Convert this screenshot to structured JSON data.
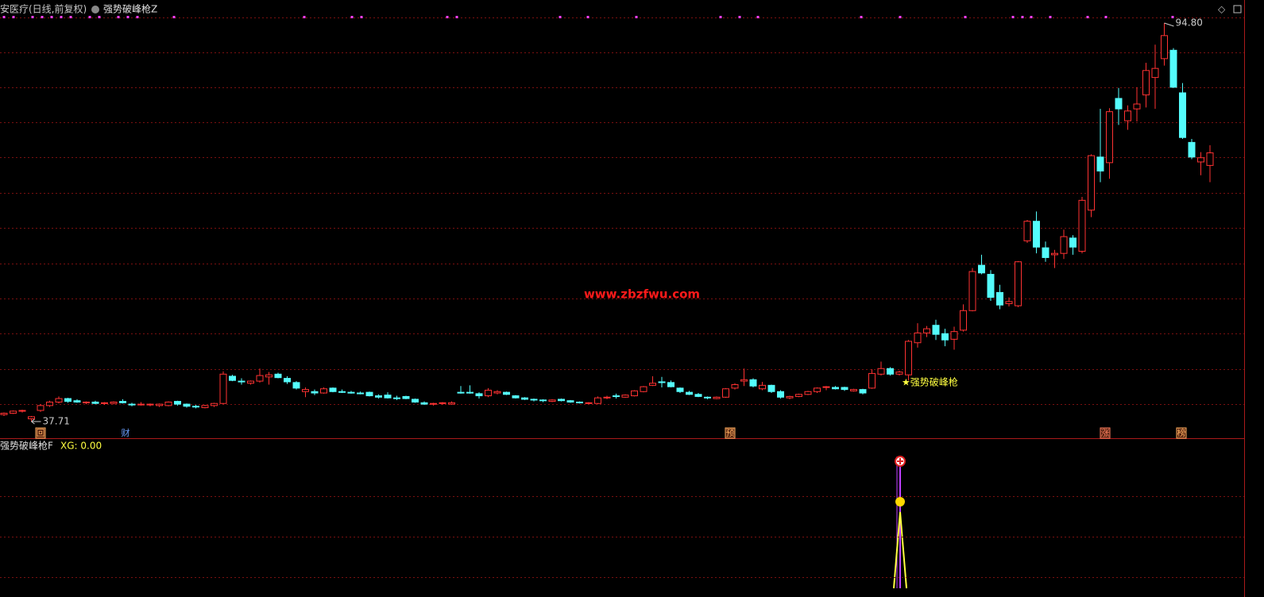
{
  "header": {
    "symbol": "安医疗(日线,前复权)",
    "formula": "强势破峰枪Z"
  },
  "chart_data": {
    "type": "candlestick",
    "up_color": "#ff3232",
    "down_color": "#54fcfc",
    "ylim": [
      35.32,
      98.1
    ],
    "high_marker": {
      "value": 94.8,
      "label": "94.80"
    },
    "low_marker": 37.71,
    "watermark": "www.zbzfwu.com",
    "signal_label": "★强势破峰枪",
    "candles": [
      {
        "open": 38.7,
        "high": 39.0,
        "low": 38.5,
        "close": 38.9
      },
      {
        "open": 38.9,
        "high": 39.3,
        "low": 38.8,
        "close": 39.2
      },
      {
        "open": 39.2,
        "high": 39.4,
        "low": 39.0,
        "close": 39.3
      },
      {
        "open": 38.1,
        "high": 38.5,
        "low": 37.71,
        "close": 38.4
      },
      {
        "open": 39.3,
        "high": 40.2,
        "low": 39.1,
        "close": 40.0
      },
      {
        "open": 40.0,
        "high": 40.7,
        "low": 39.8,
        "close": 40.5
      },
      {
        "open": 40.5,
        "high": 41.3,
        "low": 40.3,
        "close": 41.0
      },
      {
        "open": 41.0,
        "high": 41.1,
        "low": 40.4,
        "close": 40.6
      },
      {
        "open": 40.7,
        "high": 40.9,
        "low": 40.4,
        "close": 40.5
      },
      {
        "open": 40.4,
        "high": 40.6,
        "low": 40.2,
        "close": 40.5
      },
      {
        "open": 40.5,
        "high": 40.7,
        "low": 40.2,
        "close": 40.3
      },
      {
        "open": 40.3,
        "high": 40.5,
        "low": 40.1,
        "close": 40.4
      },
      {
        "open": 40.3,
        "high": 40.6,
        "low": 40.2,
        "close": 40.5
      },
      {
        "open": 40.6,
        "high": 40.9,
        "low": 40.3,
        "close": 40.4
      },
      {
        "open": 40.2,
        "high": 40.4,
        "low": 39.9,
        "close": 40.1
      },
      {
        "open": 40.1,
        "high": 40.5,
        "low": 40.0,
        "close": 40.2
      },
      {
        "open": 40.1,
        "high": 40.3,
        "low": 39.9,
        "close": 40.2
      },
      {
        "open": 40.0,
        "high": 40.3,
        "low": 39.8,
        "close": 40.2
      },
      {
        "open": 40.0,
        "high": 40.6,
        "low": 39.9,
        "close": 40.5
      },
      {
        "open": 40.6,
        "high": 40.7,
        "low": 40.0,
        "close": 40.2
      },
      {
        "open": 40.2,
        "high": 40.3,
        "low": 39.7,
        "close": 39.9
      },
      {
        "open": 39.9,
        "high": 40.1,
        "low": 39.6,
        "close": 39.8
      },
      {
        "open": 39.7,
        "high": 40.1,
        "low": 39.6,
        "close": 40.0
      },
      {
        "open": 40.0,
        "high": 40.4,
        "low": 39.8,
        "close": 40.3
      },
      {
        "open": 40.3,
        "high": 44.9,
        "low": 40.2,
        "close": 44.5
      },
      {
        "open": 44.2,
        "high": 44.4,
        "low": 43.5,
        "close": 43.6
      },
      {
        "open": 43.5,
        "high": 43.9,
        "low": 43.0,
        "close": 43.4
      },
      {
        "open": 43.2,
        "high": 43.6,
        "low": 43.0,
        "close": 43.5
      },
      {
        "open": 43.5,
        "high": 45.3,
        "low": 43.3,
        "close": 44.3
      },
      {
        "open": 44.1,
        "high": 44.8,
        "low": 43.0,
        "close": 44.4
      },
      {
        "open": 44.5,
        "high": 44.7,
        "low": 43.9,
        "close": 44.0
      },
      {
        "open": 43.9,
        "high": 44.2,
        "low": 43.1,
        "close": 43.4
      },
      {
        "open": 43.3,
        "high": 43.5,
        "low": 42.3,
        "close": 42.5
      },
      {
        "open": 42.0,
        "high": 42.6,
        "low": 41.2,
        "close": 42.3
      },
      {
        "open": 42.0,
        "high": 42.3,
        "low": 41.5,
        "close": 41.8
      },
      {
        "open": 41.8,
        "high": 42.6,
        "low": 41.7,
        "close": 42.4
      },
      {
        "open": 42.5,
        "high": 42.6,
        "low": 41.9,
        "close": 42.0
      },
      {
        "open": 42.0,
        "high": 42.3,
        "low": 41.8,
        "close": 41.9
      },
      {
        "open": 41.9,
        "high": 42.1,
        "low": 41.7,
        "close": 41.8
      },
      {
        "open": 41.8,
        "high": 42.0,
        "low": 41.6,
        "close": 41.7
      },
      {
        "open": 41.9,
        "high": 42.0,
        "low": 41.3,
        "close": 41.4
      },
      {
        "open": 41.4,
        "high": 41.6,
        "low": 41.0,
        "close": 41.2
      },
      {
        "open": 41.5,
        "high": 41.9,
        "low": 41.0,
        "close": 41.1
      },
      {
        "open": 41.1,
        "high": 41.4,
        "low": 40.8,
        "close": 41.0
      },
      {
        "open": 41.3,
        "high": 41.4,
        "low": 40.9,
        "close": 41.0
      },
      {
        "open": 40.9,
        "high": 41.0,
        "low": 40.4,
        "close": 40.5
      },
      {
        "open": 40.4,
        "high": 40.6,
        "low": 40.1,
        "close": 40.2
      },
      {
        "open": 40.2,
        "high": 40.4,
        "low": 40.0,
        "close": 40.3
      },
      {
        "open": 40.3,
        "high": 40.5,
        "low": 40.1,
        "close": 40.4
      },
      {
        "open": 40.2,
        "high": 40.6,
        "low": 40.1,
        "close": 40.4
      },
      {
        "open": 41.9,
        "high": 42.8,
        "low": 41.7,
        "close": 41.8
      },
      {
        "open": 41.9,
        "high": 42.9,
        "low": 41.7,
        "close": 41.8
      },
      {
        "open": 41.7,
        "high": 41.9,
        "low": 41.0,
        "close": 41.4
      },
      {
        "open": 41.4,
        "high": 42.5,
        "low": 41.2,
        "close": 42.2
      },
      {
        "open": 41.8,
        "high": 42.2,
        "low": 41.6,
        "close": 42.0
      },
      {
        "open": 41.9,
        "high": 42.0,
        "low": 41.5,
        "close": 41.6
      },
      {
        "open": 41.4,
        "high": 41.5,
        "low": 41.0,
        "close": 41.1
      },
      {
        "open": 41.1,
        "high": 41.2,
        "low": 40.8,
        "close": 40.9
      },
      {
        "open": 40.9,
        "high": 41.0,
        "low": 40.6,
        "close": 40.8
      },
      {
        "open": 40.8,
        "high": 40.9,
        "low": 40.5,
        "close": 40.7
      },
      {
        "open": 40.6,
        "high": 40.9,
        "low": 40.5,
        "close": 40.8
      },
      {
        "open": 40.9,
        "high": 41.0,
        "low": 40.6,
        "close": 40.7
      },
      {
        "open": 40.7,
        "high": 40.8,
        "low": 40.4,
        "close": 40.5
      },
      {
        "open": 40.5,
        "high": 40.6,
        "low": 40.3,
        "close": 40.4
      },
      {
        "open": 40.3,
        "high": 40.5,
        "low": 40.2,
        "close": 40.4
      },
      {
        "open": 40.3,
        "high": 41.3,
        "low": 40.2,
        "close": 41.1
      },
      {
        "open": 41.1,
        "high": 41.4,
        "low": 40.9,
        "close": 41.2
      },
      {
        "open": 41.4,
        "high": 41.7,
        "low": 41.0,
        "close": 41.3
      },
      {
        "open": 41.2,
        "high": 41.6,
        "low": 41.1,
        "close": 41.5
      },
      {
        "open": 41.4,
        "high": 42.2,
        "low": 41.3,
        "close": 42.1
      },
      {
        "open": 42.0,
        "high": 42.8,
        "low": 41.9,
        "close": 42.7
      },
      {
        "open": 42.9,
        "high": 44.2,
        "low": 42.8,
        "close": 43.2
      },
      {
        "open": 43.4,
        "high": 44.1,
        "low": 42.6,
        "close": 43.3
      },
      {
        "open": 43.3,
        "high": 43.6,
        "low": 42.6,
        "close": 42.7
      },
      {
        "open": 42.5,
        "high": 42.6,
        "low": 41.8,
        "close": 42.0
      },
      {
        "open": 41.9,
        "high": 42.1,
        "low": 41.5,
        "close": 41.6
      },
      {
        "open": 41.6,
        "high": 41.8,
        "low": 41.2,
        "close": 41.3
      },
      {
        "open": 41.2,
        "high": 41.3,
        "low": 40.9,
        "close": 41.1
      },
      {
        "open": 41.0,
        "high": 41.3,
        "low": 40.9,
        "close": 41.2
      },
      {
        "open": 41.2,
        "high": 42.5,
        "low": 41.1,
        "close": 42.4
      },
      {
        "open": 42.5,
        "high": 43.2,
        "low": 42.3,
        "close": 43.0
      },
      {
        "open": 43.5,
        "high": 45.3,
        "low": 42.8,
        "close": 43.7
      },
      {
        "open": 43.7,
        "high": 43.9,
        "low": 42.6,
        "close": 42.8
      },
      {
        "open": 42.4,
        "high": 43.4,
        "low": 42.2,
        "close": 42.9
      },
      {
        "open": 42.9,
        "high": 43.0,
        "low": 41.8,
        "close": 42.0
      },
      {
        "open": 42.0,
        "high": 42.2,
        "low": 41.0,
        "close": 41.2
      },
      {
        "open": 41.1,
        "high": 41.4,
        "low": 40.9,
        "close": 41.3
      },
      {
        "open": 41.3,
        "high": 41.7,
        "low": 41.2,
        "close": 41.6
      },
      {
        "open": 41.6,
        "high": 42.1,
        "low": 41.5,
        "close": 42.0
      },
      {
        "open": 42.0,
        "high": 42.6,
        "low": 41.8,
        "close": 42.5
      },
      {
        "open": 42.6,
        "high": 42.8,
        "low": 42.2,
        "close": 42.7
      },
      {
        "open": 42.6,
        "high": 42.8,
        "low": 42.3,
        "close": 42.4
      },
      {
        "open": 42.6,
        "high": 42.7,
        "low": 42.1,
        "close": 42.3
      },
      {
        "open": 42.1,
        "high": 42.4,
        "low": 42.0,
        "close": 42.3
      },
      {
        "open": 42.3,
        "high": 42.4,
        "low": 41.6,
        "close": 41.8
      },
      {
        "open": 42.5,
        "high": 45.2,
        "low": 42.4,
        "close": 44.6
      },
      {
        "open": 44.5,
        "high": 46.3,
        "low": 44.3,
        "close": 45.3
      },
      {
        "open": 45.3,
        "high": 45.5,
        "low": 44.3,
        "close": 44.5
      },
      {
        "open": 44.5,
        "high": 45.0,
        "low": 44.3,
        "close": 44.8
      },
      {
        "open": 44.4,
        "high": 49.4,
        "low": 43.6,
        "close": 49.2
      },
      {
        "open": 49.0,
        "high": 51.8,
        "low": 48.3,
        "close": 50.4
      },
      {
        "open": 50.4,
        "high": 51.4,
        "low": 49.8,
        "close": 51.0
      },
      {
        "open": 51.5,
        "high": 52.3,
        "low": 49.4,
        "close": 50.2
      },
      {
        "open": 50.3,
        "high": 51.0,
        "low": 48.5,
        "close": 49.4
      },
      {
        "open": 49.5,
        "high": 51.3,
        "low": 48.0,
        "close": 50.6
      },
      {
        "open": 50.8,
        "high": 54.5,
        "low": 50.6,
        "close": 53.6
      },
      {
        "open": 53.6,
        "high": 59.7,
        "low": 53.5,
        "close": 59.2
      },
      {
        "open": 60.1,
        "high": 61.6,
        "low": 58.8,
        "close": 59.0
      },
      {
        "open": 58.8,
        "high": 59.4,
        "low": 55.0,
        "close": 55.5
      },
      {
        "open": 56.2,
        "high": 57.3,
        "low": 53.8,
        "close": 54.4
      },
      {
        "open": 54.6,
        "high": 55.5,
        "low": 54.2,
        "close": 54.9
      },
      {
        "open": 54.3,
        "high": 60.7,
        "low": 54.1,
        "close": 60.6
      },
      {
        "open": 63.6,
        "high": 66.6,
        "low": 63.3,
        "close": 66.4
      },
      {
        "open": 66.4,
        "high": 67.8,
        "low": 61.8,
        "close": 62.7
      },
      {
        "open": 62.6,
        "high": 63.5,
        "low": 60.6,
        "close": 61.2
      },
      {
        "open": 61.6,
        "high": 62.3,
        "low": 59.7,
        "close": 61.8
      },
      {
        "open": 61.8,
        "high": 65.2,
        "low": 61.0,
        "close": 64.2
      },
      {
        "open": 64.0,
        "high": 64.4,
        "low": 61.6,
        "close": 62.7
      },
      {
        "open": 62.1,
        "high": 69.9,
        "low": 61.8,
        "close": 69.4
      },
      {
        "open": 68.0,
        "high": 76.0,
        "low": 67.0,
        "close": 75.8
      },
      {
        "open": 75.6,
        "high": 82.5,
        "low": 72.0,
        "close": 73.6
      },
      {
        "open": 74.8,
        "high": 82.6,
        "low": 72.5,
        "close": 82.1
      },
      {
        "open": 84.0,
        "high": 85.5,
        "low": 80.2,
        "close": 82.5
      },
      {
        "open": 80.8,
        "high": 83.0,
        "low": 79.5,
        "close": 82.2
      },
      {
        "open": 82.5,
        "high": 85.6,
        "low": 80.7,
        "close": 83.2
      },
      {
        "open": 84.5,
        "high": 89.1,
        "low": 82.7,
        "close": 88.0
      },
      {
        "open": 87.0,
        "high": 91.7,
        "low": 82.5,
        "close": 88.3
      },
      {
        "open": 89.7,
        "high": 94.8,
        "low": 88.7,
        "close": 93.0
      },
      {
        "open": 90.9,
        "high": 91.2,
        "low": 85.5,
        "close": 85.6
      },
      {
        "open": 84.8,
        "high": 86.2,
        "low": 78.2,
        "close": 78.4
      },
      {
        "open": 77.7,
        "high": 78.2,
        "low": 75.3,
        "close": 75.6
      },
      {
        "open": 74.9,
        "high": 76.3,
        "low": 73.0,
        "close": 75.5
      },
      {
        "open": 74.4,
        "high": 77.3,
        "low": 72.0,
        "close": 76.2
      }
    ]
  },
  "event_tags": [
    "回",
    "财",
    "预",
    "涨",
    "榜"
  ],
  "indicator": {
    "name": "强势破峰枪F",
    "xg": "XG: 0.00"
  }
}
